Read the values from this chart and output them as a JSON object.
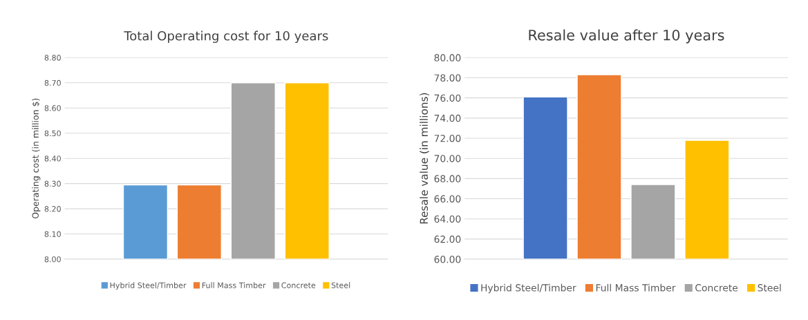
{
  "chart_data": [
    {
      "type": "bar",
      "title": "Total Operating cost for 10 years",
      "ylabel": "Operating cost (in million $)",
      "categories": [
        null
      ],
      "series": [
        {
          "name": "Hybrid Steel/Timber",
          "color": "#5b9bd5",
          "values": [
            8.295
          ]
        },
        {
          "name": "Full Mass Timber",
          "color": "#ed7d31",
          "values": [
            8.295
          ]
        },
        {
          "name": "Concrete",
          "color": "#a5a5a5",
          "values": [
            8.7
          ]
        },
        {
          "name": "Steel",
          "color": "#ffc000",
          "values": [
            8.7
          ]
        }
      ],
      "ylim": [
        8.0,
        8.8
      ],
      "yticks": [
        {
          "value": 8.0,
          "label": "8.00"
        },
        {
          "value": 8.1,
          "label": "8.10"
        },
        {
          "value": 8.2,
          "label": "8.20"
        },
        {
          "value": 8.3,
          "label": "8.30"
        },
        {
          "value": 8.4,
          "label": "8.40"
        },
        {
          "value": 8.5,
          "label": "8.50"
        },
        {
          "value": 8.6,
          "label": "8.60"
        },
        {
          "value": 8.7,
          "label": "8.70"
        },
        {
          "value": 8.8,
          "label": "8.80"
        }
      ],
      "grid": "y",
      "legend": "bottom"
    },
    {
      "type": "bar",
      "title": "Resale value after 10 years",
      "ylabel": "Resale value (in millions)",
      "categories": [
        null
      ],
      "series": [
        {
          "name": "Hybrid Steel/Timber",
          "color": "#4472c4",
          "values": [
            76.1
          ]
        },
        {
          "name": "Full Mass Timber",
          "color": "#ed7d31",
          "values": [
            78.3
          ]
        },
        {
          "name": "Concrete",
          "color": "#a5a5a5",
          "values": [
            67.4
          ]
        },
        {
          "name": "Steel",
          "color": "#ffc000",
          "values": [
            71.8
          ]
        }
      ],
      "ylim": [
        60,
        80
      ],
      "yticks": [
        {
          "value": 60,
          "label": "60.00"
        },
        {
          "value": 62,
          "label": "62.00"
        },
        {
          "value": 64,
          "label": "64.00"
        },
        {
          "value": 66,
          "label": "66.00"
        },
        {
          "value": 68,
          "label": "68.00"
        },
        {
          "value": 70,
          "label": "70.00"
        },
        {
          "value": 72,
          "label": "72.00"
        },
        {
          "value": 74,
          "label": "74.00"
        },
        {
          "value": 76,
          "label": "76.00"
        },
        {
          "value": 78,
          "label": "78.00"
        },
        {
          "value": 80,
          "label": "80.00"
        }
      ],
      "grid": "y",
      "legend": "bottom"
    }
  ]
}
